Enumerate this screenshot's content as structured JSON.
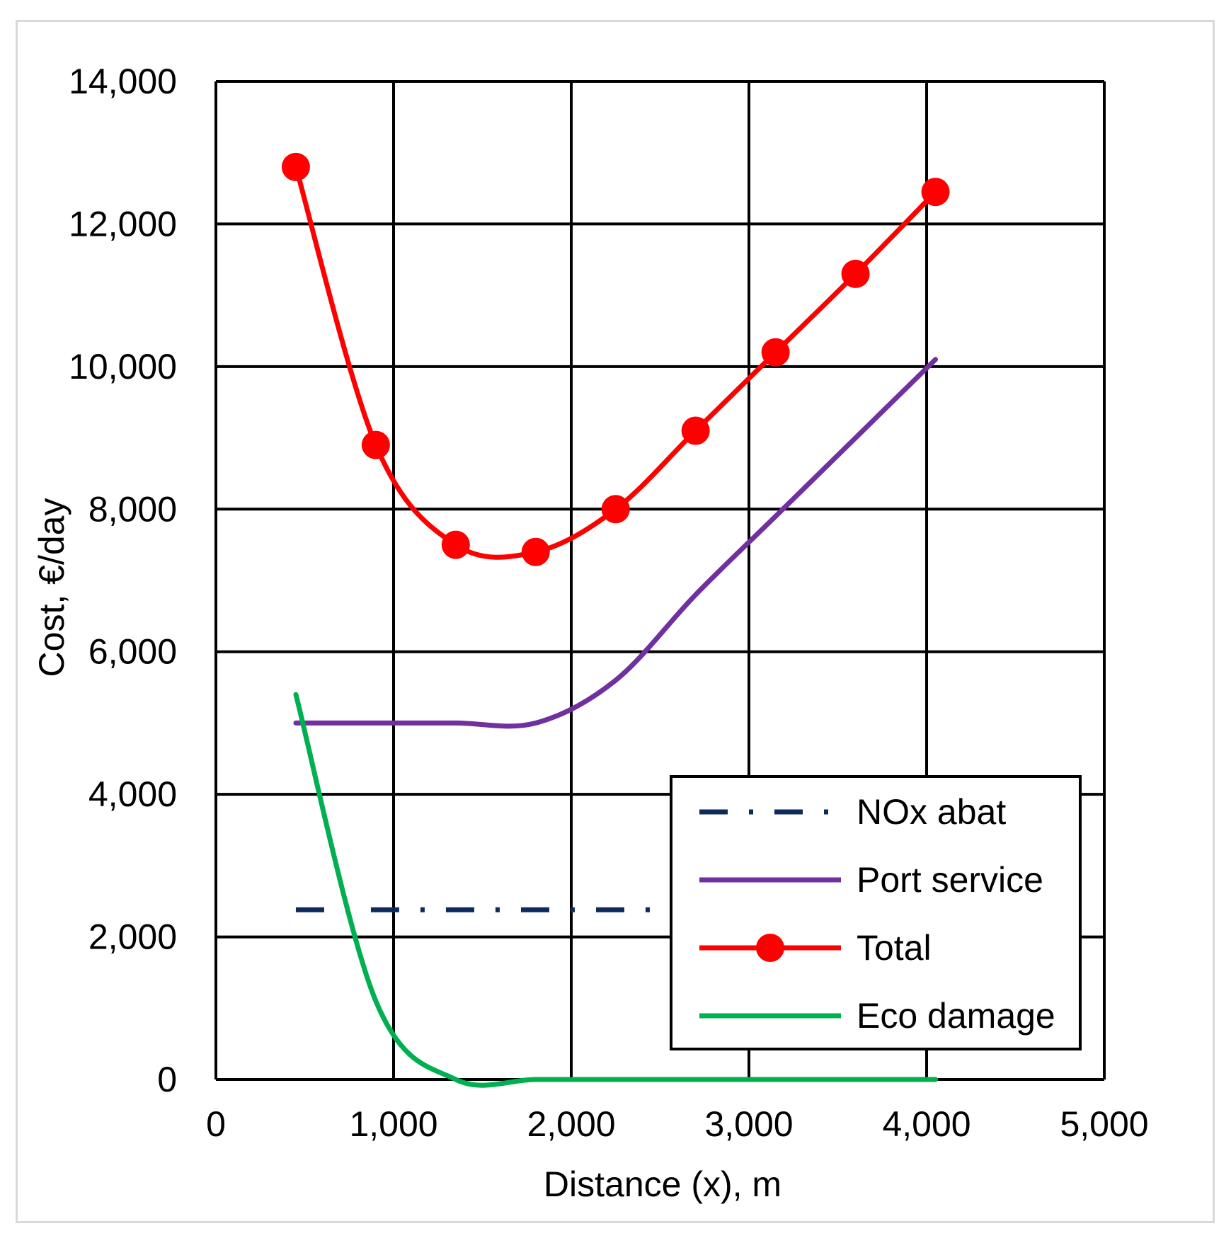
{
  "chart_data": {
    "type": "line",
    "title": "",
    "xlabel": "Distance (x), m",
    "ylabel": "Cost, €/day",
    "xlim": [
      0,
      5000
    ],
    "ylim": [
      0,
      14000
    ],
    "x_ticks": [
      0,
      1000,
      2000,
      3000,
      4000,
      5000
    ],
    "y_ticks": [
      0,
      2000,
      4000,
      6000,
      8000,
      10000,
      12000,
      14000
    ],
    "x_tick_labels": [
      "0",
      "1,000",
      "2,000",
      "3,000",
      "4,000",
      "5,000"
    ],
    "y_tick_labels": [
      "0",
      "2,000",
      "4,000",
      "6,000",
      "8,000",
      "10,000",
      "12,000",
      "14,000"
    ],
    "grid": true,
    "legend_position": "bottom-right",
    "series": [
      {
        "name": "NOx abat",
        "color": "#0d2a5c",
        "style": "dash-dot",
        "markers": false,
        "x": [
          450,
          4050
        ],
        "y": [
          2380,
          2380
        ]
      },
      {
        "name": "Port service",
        "color": "#7030a0",
        "style": "solid",
        "markers": false,
        "x": [
          450,
          900,
          1350,
          1800,
          2250,
          2700,
          3150,
          3600,
          4050
        ],
        "y": [
          5000,
          5000,
          5000,
          5000,
          5600,
          6800,
          7900,
          9000,
          10100
        ]
      },
      {
        "name": "Total",
        "color": "#ff0000",
        "style": "solid",
        "markers": true,
        "x": [
          450,
          900,
          1350,
          1800,
          2250,
          2700,
          3150,
          3600,
          4050
        ],
        "y": [
          12800,
          8900,
          7500,
          7400,
          8000,
          9100,
          10200,
          11300,
          12450
        ]
      },
      {
        "name": "Eco damage",
        "color": "#00b050",
        "style": "solid",
        "markers": false,
        "x": [
          450,
          900,
          1350,
          1800,
          2250,
          2700,
          3150,
          3600,
          4050
        ],
        "y": [
          5400,
          1100,
          0,
          0,
          0,
          0,
          0,
          0,
          0
        ]
      }
    ]
  }
}
